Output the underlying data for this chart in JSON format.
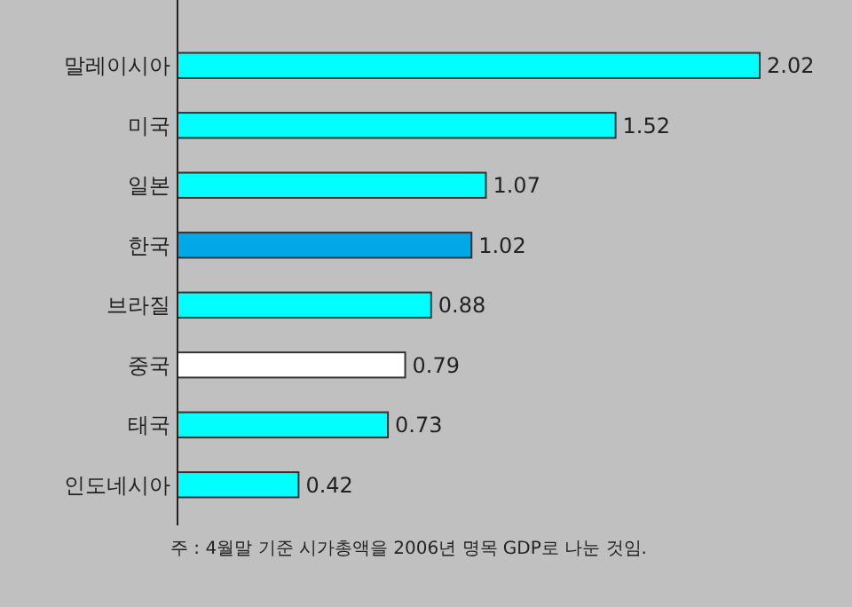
{
  "chart_data": {
    "type": "bar",
    "orientation": "horizontal",
    "categories": [
      "말레이시아",
      "미국",
      "일본",
      "한국",
      "브라질",
      "중국",
      "태국",
      "인도네시아"
    ],
    "values": [
      2.02,
      1.52,
      1.07,
      1.02,
      0.88,
      0.79,
      0.73,
      0.42
    ],
    "colors": [
      "#00ffff",
      "#00ffff",
      "#00ffff",
      "#00a8e8",
      "#00ffff",
      "#ffffff",
      "#00ffff",
      "#00ffff"
    ],
    "data_labels": true,
    "annotations": [
      "주 : 4월말 기준 시가총액을 2006년 명목 GDP로 나눈 것임."
    ]
  }
}
